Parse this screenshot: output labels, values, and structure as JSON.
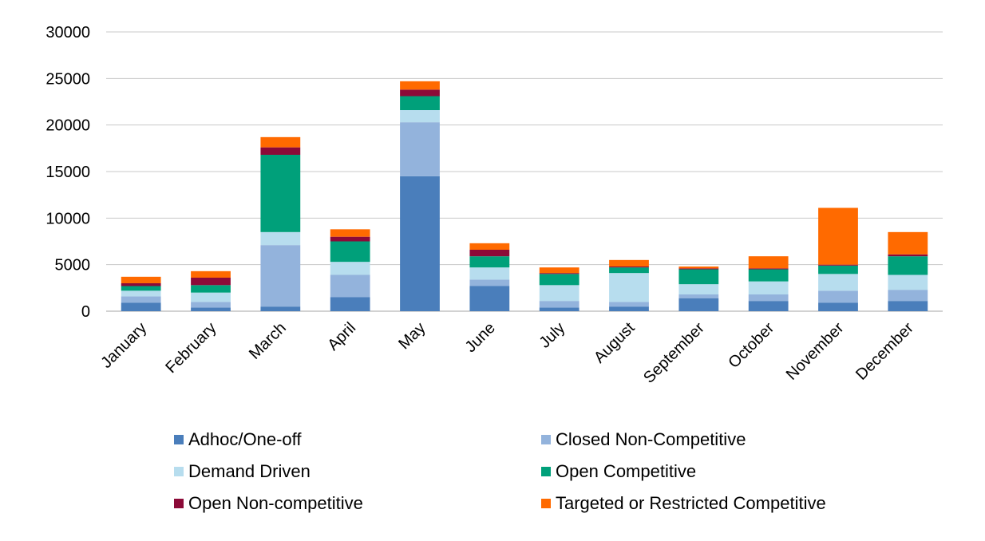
{
  "chart_data": {
    "type": "bar",
    "stacked": true,
    "title": "",
    "xlabel": "",
    "ylabel": "",
    "ylim": [
      0,
      30000
    ],
    "yticks": [
      0,
      5000,
      10000,
      15000,
      20000,
      25000,
      30000
    ],
    "grid": true,
    "legend_position": "bottom",
    "categories": [
      "January",
      "February",
      "March",
      "April",
      "May",
      "June",
      "July",
      "August",
      "September",
      "October",
      "November",
      "December"
    ],
    "series": [
      {
        "name": "Adhoc/One-off",
        "color": "#4A7EBB",
        "values": [
          900,
          400,
          500,
          1500,
          14500,
          2700,
          400,
          500,
          1400,
          1100,
          900,
          1100
        ]
      },
      {
        "name": "Closed Non-Competitive",
        "color": "#93B3DC",
        "values": [
          700,
          600,
          6600,
          2400,
          5800,
          700,
          700,
          500,
          400,
          700,
          1300,
          1200
        ]
      },
      {
        "name": "Demand Driven",
        "color": "#B7DDEE",
        "values": [
          600,
          1000,
          1400,
          1400,
          1300,
          1300,
          1700,
          3100,
          1100,
          1400,
          1800,
          1600
        ]
      },
      {
        "name": "Open Competitive",
        "color": "#00A07A",
        "values": [
          500,
          800,
          8300,
          2200,
          1500,
          1200,
          1200,
          600,
          1600,
          1300,
          900,
          2000
        ]
      },
      {
        "name": "Open Non-competitive",
        "color": "#8C0A38",
        "values": [
          300,
          800,
          800,
          500,
          700,
          700,
          100,
          100,
          100,
          100,
          100,
          200
        ]
      },
      {
        "name": "Targeted or Restricted Competitive",
        "color": "#FF6A00",
        "values": [
          700,
          700,
          1100,
          800,
          900,
          700,
          600,
          700,
          200,
          1300,
          6100,
          2400
        ]
      }
    ]
  }
}
